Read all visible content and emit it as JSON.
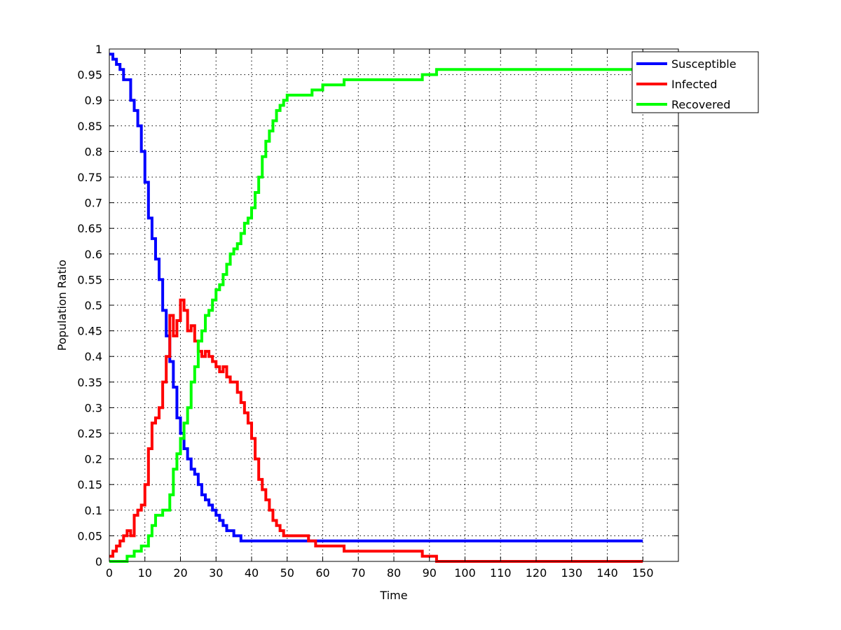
{
  "chart_data": {
    "type": "line",
    "title": "",
    "xlabel": "Time",
    "ylabel": "Population Ratio",
    "xlim": [
      0,
      160
    ],
    "ylim": [
      0,
      1
    ],
    "xticks": [
      0,
      10,
      20,
      30,
      40,
      50,
      60,
      70,
      80,
      90,
      100,
      110,
      120,
      130,
      140,
      150
    ],
    "xtick_labels": [
      "0",
      "10",
      "20",
      "30",
      "40",
      "50",
      "60",
      "70",
      "80",
      "90",
      "100",
      "110",
      "120",
      "130",
      "140",
      "150"
    ],
    "yticks": [
      0,
      0.05,
      0.1,
      0.15,
      0.2,
      0.25,
      0.3,
      0.35,
      0.4,
      0.45,
      0.5,
      0.55,
      0.6,
      0.65,
      0.7,
      0.75,
      0.8,
      0.85,
      0.9,
      0.95,
      1
    ],
    "ytick_labels": [
      "0",
      "0.05",
      "0.1",
      "0.15",
      "0.2",
      "0.25",
      "0.3",
      "0.35",
      "0.4",
      "0.45",
      "0.5",
      "0.55",
      "0.6",
      "0.65",
      "0.7",
      "0.75",
      "0.8",
      "0.85",
      "0.9",
      "0.95",
      "1"
    ],
    "grid": true,
    "legend_position": "top-right",
    "series": [
      {
        "name": "Susceptible",
        "color": "#0000ff",
        "step": true,
        "x": [
          0,
          1,
          2,
          3,
          4,
          5,
          6,
          7,
          8,
          9,
          10,
          11,
          12,
          13,
          14,
          15,
          16,
          17,
          18,
          19,
          20,
          21,
          22,
          23,
          24,
          25,
          26,
          27,
          28,
          29,
          30,
          31,
          32,
          33,
          34,
          35,
          36,
          37,
          38,
          39,
          40,
          150
        ],
        "y": [
          0.99,
          0.98,
          0.97,
          0.96,
          0.94,
          0.94,
          0.9,
          0.88,
          0.85,
          0.8,
          0.74,
          0.67,
          0.63,
          0.59,
          0.55,
          0.49,
          0.44,
          0.39,
          0.34,
          0.28,
          0.25,
          0.22,
          0.2,
          0.18,
          0.17,
          0.15,
          0.13,
          0.12,
          0.11,
          0.1,
          0.09,
          0.08,
          0.07,
          0.06,
          0.06,
          0.05,
          0.05,
          0.04,
          0.04,
          0.04,
          0.04,
          0.04
        ]
      },
      {
        "name": "Infected",
        "color": "#ff0000",
        "step": true,
        "x": [
          0,
          1,
          2,
          3,
          4,
          5,
          6,
          7,
          8,
          9,
          10,
          11,
          12,
          13,
          14,
          15,
          16,
          17,
          18,
          19,
          20,
          21,
          22,
          23,
          24,
          25,
          26,
          27,
          28,
          29,
          30,
          31,
          32,
          33,
          34,
          35,
          36,
          37,
          38,
          39,
          40,
          41,
          42,
          43,
          44,
          45,
          46,
          47,
          48,
          49,
          50,
          52,
          56,
          58,
          66,
          88,
          92,
          150
        ],
        "y": [
          0.01,
          0.02,
          0.03,
          0.04,
          0.05,
          0.06,
          0.05,
          0.09,
          0.1,
          0.11,
          0.15,
          0.22,
          0.27,
          0.28,
          0.3,
          0.35,
          0.4,
          0.48,
          0.44,
          0.47,
          0.51,
          0.49,
          0.45,
          0.46,
          0.43,
          0.41,
          0.4,
          0.41,
          0.4,
          0.39,
          0.38,
          0.37,
          0.38,
          0.36,
          0.35,
          0.35,
          0.33,
          0.31,
          0.29,
          0.27,
          0.24,
          0.2,
          0.16,
          0.14,
          0.12,
          0.1,
          0.08,
          0.07,
          0.06,
          0.05,
          0.05,
          0.05,
          0.04,
          0.03,
          0.02,
          0.01,
          0,
          0
        ]
      },
      {
        "name": "Recovered",
        "color": "#00ff00",
        "step": true,
        "x": [
          0,
          5,
          7,
          8,
          9,
          10,
          11,
          12,
          13,
          14,
          15,
          16,
          17,
          18,
          19,
          20,
          21,
          22,
          23,
          24,
          25,
          26,
          27,
          28,
          29,
          30,
          31,
          32,
          33,
          34,
          35,
          36,
          37,
          38,
          39,
          40,
          41,
          42,
          43,
          44,
          45,
          46,
          47,
          48,
          49,
          50,
          51,
          52,
          57,
          60,
          66,
          70,
          88,
          92,
          150
        ],
        "y": [
          0,
          0.01,
          0.02,
          0.02,
          0.03,
          0.03,
          0.05,
          0.07,
          0.09,
          0.09,
          0.1,
          0.1,
          0.13,
          0.18,
          0.21,
          0.24,
          0.27,
          0.3,
          0.35,
          0.38,
          0.43,
          0.45,
          0.48,
          0.49,
          0.51,
          0.53,
          0.54,
          0.56,
          0.58,
          0.6,
          0.61,
          0.62,
          0.64,
          0.66,
          0.67,
          0.69,
          0.72,
          0.75,
          0.79,
          0.82,
          0.84,
          0.86,
          0.88,
          0.89,
          0.9,
          0.91,
          0.91,
          0.91,
          0.92,
          0.93,
          0.94,
          0.94,
          0.95,
          0.96,
          0.96
        ]
      }
    ]
  }
}
